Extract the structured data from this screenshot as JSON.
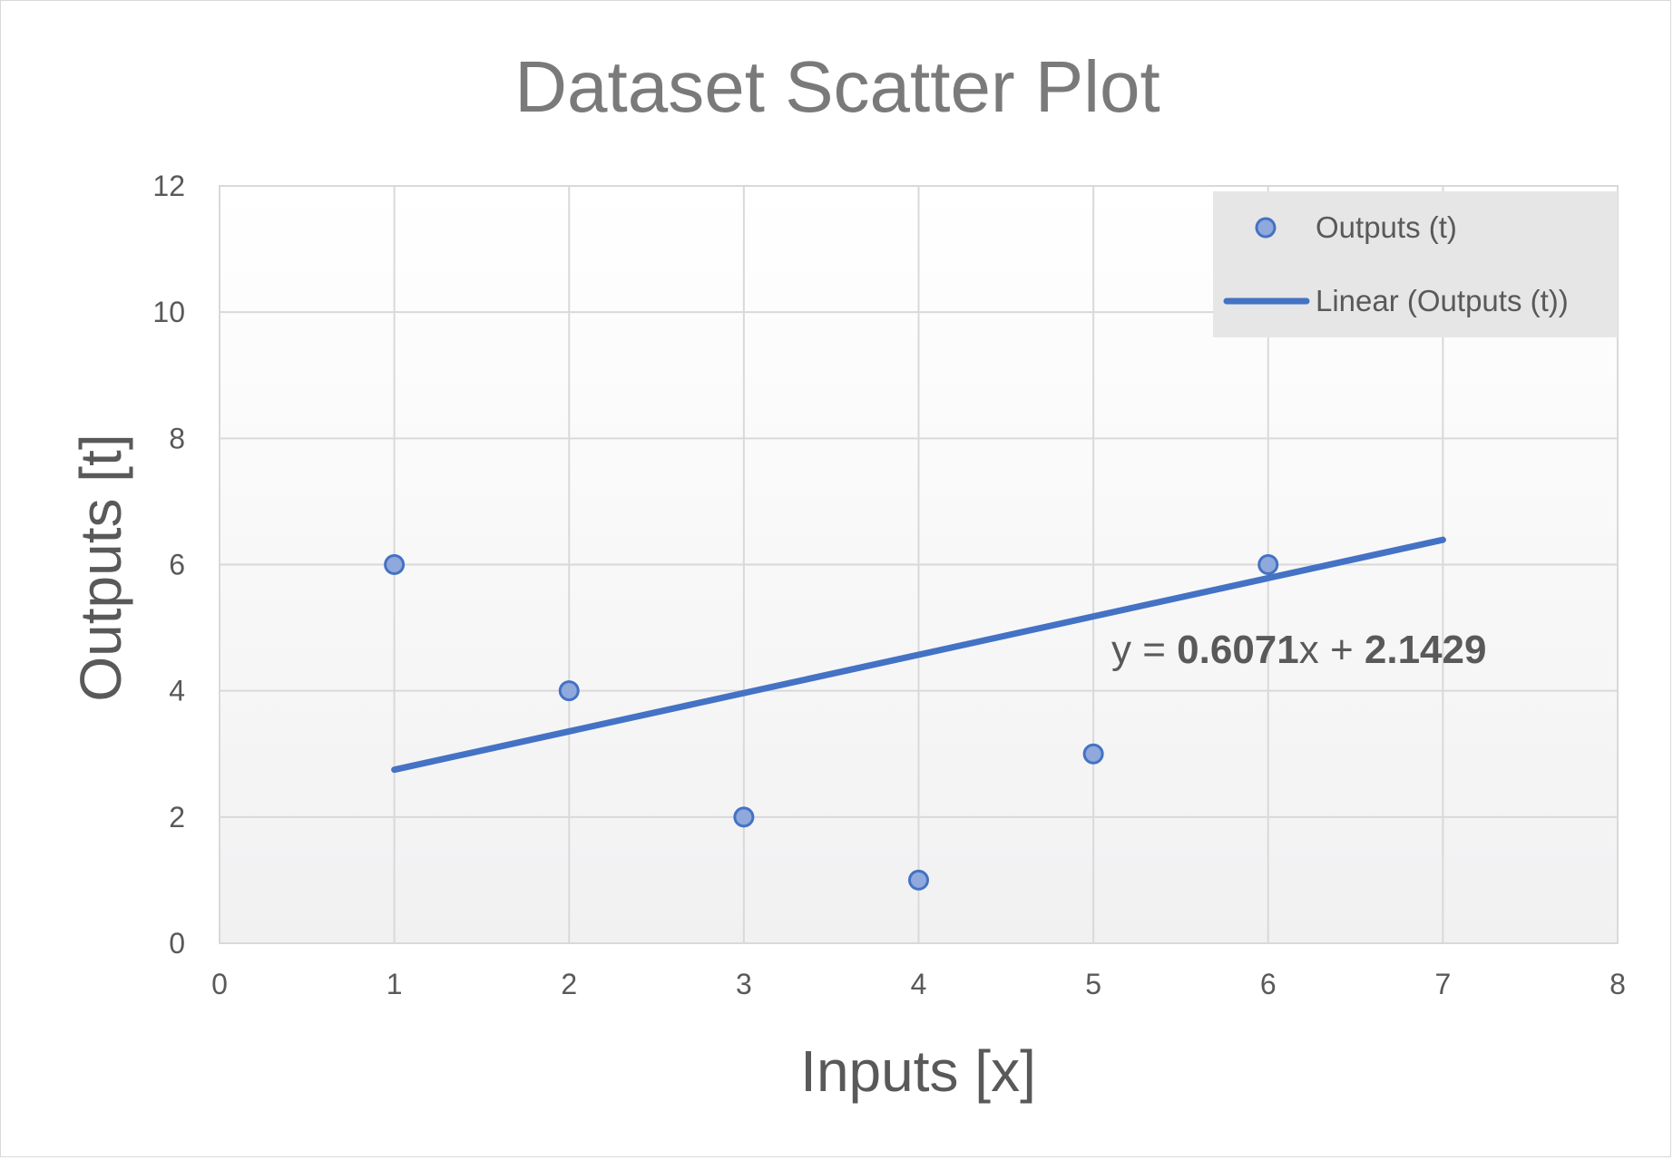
{
  "chart_data": {
    "type": "scatter",
    "title": "Dataset Scatter Plot",
    "xlabel": "Inputs [x]",
    "ylabel": "Outputs [t]",
    "xlim": [
      0,
      8
    ],
    "ylim": [
      0,
      12
    ],
    "x_ticks": [
      "0",
      "1",
      "2",
      "3",
      "4",
      "5",
      "6",
      "7",
      "8"
    ],
    "y_ticks": [
      "0",
      "2",
      "4",
      "6",
      "8",
      "10",
      "12"
    ],
    "grid": true,
    "legend_position": "top-right",
    "series": [
      {
        "name": "Outputs (t)",
        "x": [
          1,
          2,
          3,
          4,
          5,
          6
        ],
        "y": [
          6,
          4,
          2,
          1,
          3,
          6
        ],
        "color": "#8FA9DC",
        "edge_color": "#4472C4"
      }
    ],
    "trendline": {
      "name": "Linear (Outputs (t))",
      "slope": 0.6071,
      "intercept": 2.1429,
      "x_range": [
        1,
        7
      ],
      "color": "#4472C4",
      "equation": {
        "prefix": "y = ",
        "slope_text": "0.6071",
        "middle": "x + ",
        "intercept_text": "2.1429"
      }
    }
  }
}
